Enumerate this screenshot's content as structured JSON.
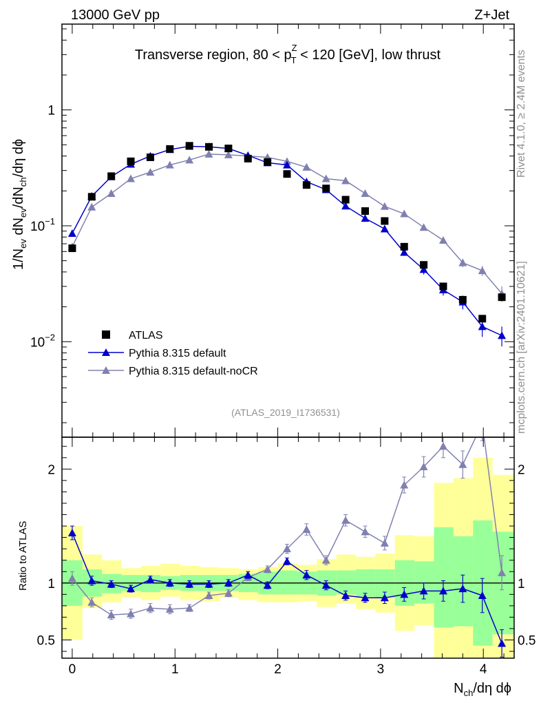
{
  "header": {
    "left": "13000 GeV pp",
    "right": "Z+Jet",
    "side_rivet": "Rivet 4.1.0, ≥ 2.4M events",
    "side_mcplots": "mcplots.cern.ch [arXiv:2401.10621]"
  },
  "colors": {
    "atlas": "#000000",
    "pythia_default": "#0000cc",
    "pythia_nocr": "#8080b0",
    "band_outer": "#ffff99",
    "band_inner": "#99ff99"
  },
  "chart_data": [
    {
      "type": "scatter",
      "panel": "main",
      "title_parts": [
        "Transverse region, 80 < p",
        "Z",
        "T",
        " < 120 [GeV], low thrust"
      ],
      "ylabel_parts": [
        "1/N",
        "ev",
        " dN",
        "ev",
        "/dN",
        "ch",
        "/dη dϕ"
      ],
      "yscale": "log",
      "ylim": [
        0.0015,
        5.5
      ],
      "xlim": [
        -0.1,
        4.3
      ],
      "ytick_labels": [
        {
          "value": 1,
          "base": "1",
          "exp": ""
        },
        {
          "value": 0.1,
          "base": "10",
          "exp": "−1"
        },
        {
          "value": 0.01,
          "base": "10",
          "exp": "−2"
        }
      ],
      "watermark": "(ATLAS_2019_I1736531)",
      "x": [
        0.0,
        0.19,
        0.38,
        0.57,
        0.76,
        0.95,
        1.14,
        1.33,
        1.52,
        1.71,
        1.9,
        2.09,
        2.28,
        2.47,
        2.66,
        2.85,
        3.04,
        3.23,
        3.42,
        3.61,
        3.8,
        3.99,
        4.18
      ],
      "series": [
        {
          "name": "ATLAS",
          "marker": "square",
          "values": [
            0.064,
            0.178,
            0.268,
            0.36,
            0.39,
            0.46,
            0.49,
            0.48,
            0.465,
            0.38,
            0.355,
            0.28,
            0.225,
            0.21,
            0.168,
            0.134,
            0.11,
            0.066,
            0.046,
            0.03,
            0.023,
            0.0158,
            0.0242
          ]
        },
        {
          "name": "Pythia 8.315 default",
          "marker": "triangle",
          "values": [
            0.086,
            0.18,
            0.265,
            0.34,
            0.4,
            0.455,
            0.485,
            0.48,
            0.465,
            0.405,
            0.35,
            0.335,
            0.24,
            0.205,
            0.148,
            0.116,
            0.094,
            0.059,
            0.042,
            0.028,
            0.022,
            0.0135,
            0.0113
          ],
          "errors": [
            0.004,
            0.006,
            0.008,
            0.01,
            0.012,
            0.013,
            0.014,
            0.014,
            0.013,
            0.012,
            0.011,
            0.01,
            0.009,
            0.008,
            0.006,
            0.005,
            0.005,
            0.004,
            0.004,
            0.003,
            0.003,
            0.0025,
            0.0022
          ]
        },
        {
          "name": "Pythia 8.315 default-noCR",
          "marker": "triangle",
          "values": [
            0.066,
            0.145,
            0.19,
            0.255,
            0.29,
            0.335,
            0.37,
            0.415,
            0.41,
            0.4,
            0.39,
            0.36,
            0.32,
            0.255,
            0.245,
            0.19,
            0.147,
            0.127,
            0.097,
            0.075,
            0.048,
            0.041,
            0.026
          ],
          "errors": [
            0.004,
            0.005,
            0.006,
            0.008,
            0.009,
            0.01,
            0.011,
            0.012,
            0.012,
            0.012,
            0.011,
            0.01,
            0.009,
            0.008,
            0.007,
            0.006,
            0.006,
            0.005,
            0.004,
            0.004,
            0.004,
            0.004,
            0.004
          ]
        }
      ]
    },
    {
      "type": "line",
      "panel": "ratio",
      "ylabel": "Ratio to ATLAS",
      "xlabel_parts": [
        "N",
        "ch",
        "/dη dϕ"
      ],
      "ylim": [
        0.34,
        2.28
      ],
      "xlim": [
        -0.1,
        4.3
      ],
      "yticks": [
        0.5,
        1,
        2
      ],
      "ytick_labels": [
        "0.5",
        "1",
        "2"
      ],
      "xticks": [
        0,
        1,
        2,
        3,
        4
      ],
      "xtick_labels": [
        "0",
        "1",
        "2",
        "3",
        "4"
      ],
      "band_edges": [
        -0.1,
        0.1,
        0.29,
        0.48,
        0.67,
        0.86,
        1.05,
        1.24,
        1.43,
        1.62,
        1.81,
        2.0,
        2.19,
        2.38,
        2.57,
        2.76,
        2.95,
        3.14,
        3.33,
        3.52,
        3.71,
        3.9,
        4.09,
        4.3
      ],
      "band_outer_low": [
        0.5,
        0.78,
        0.83,
        0.87,
        0.85,
        0.88,
        0.85,
        0.84,
        0.87,
        0.85,
        0.83,
        0.83,
        0.84,
        0.79,
        0.82,
        0.77,
        0.74,
        0.58,
        0.63,
        0.2,
        0.2,
        0.2,
        0.2
      ],
      "band_outer_high": [
        1.5,
        1.25,
        1.2,
        1.13,
        1.15,
        1.17,
        1.15,
        1.14,
        1.13,
        1.12,
        1.14,
        1.17,
        1.16,
        1.21,
        1.25,
        1.23,
        1.26,
        1.42,
        1.41,
        1.88,
        1.92,
        2.1,
        1.95
      ],
      "band_inner_low": [
        0.8,
        0.88,
        0.91,
        0.93,
        0.92,
        0.94,
        0.93,
        0.93,
        0.93,
        0.92,
        0.9,
        0.9,
        0.9,
        0.89,
        0.9,
        0.88,
        0.87,
        0.8,
        0.82,
        0.61,
        0.62,
        0.45,
        0.55
      ],
      "band_inner_high": [
        1.2,
        1.12,
        1.08,
        1.07,
        1.07,
        1.06,
        1.07,
        1.07,
        1.07,
        1.08,
        1.1,
        1.11,
        1.1,
        1.11,
        1.11,
        1.12,
        1.12,
        1.2,
        1.19,
        1.49,
        1.41,
        1.55,
        1.45
      ],
      "reference_line": 1,
      "series": [
        {
          "name": "Pythia 8.315 default",
          "values": [
            1.44,
            1.02,
            0.99,
            0.95,
            1.03,
            1.0,
            0.99,
            0.99,
            1.0,
            1.07,
            0.98,
            1.19,
            1.07,
            0.98,
            0.89,
            0.87,
            0.87,
            0.9,
            0.93,
            0.93,
            0.95,
            0.89,
            0.47
          ],
          "errors": [
            0.06,
            0.04,
            0.03,
            0.03,
            0.03,
            0.03,
            0.03,
            0.03,
            0.03,
            0.03,
            0.03,
            0.03,
            0.04,
            0.04,
            0.04,
            0.04,
            0.05,
            0.06,
            0.07,
            0.09,
            0.12,
            0.15,
            0.12
          ]
        },
        {
          "name": "Pythia 8.315 default-noCR",
          "values": [
            1.04,
            0.83,
            0.72,
            0.73,
            0.78,
            0.77,
            0.78,
            0.89,
            0.91,
            1.05,
            1.12,
            1.3,
            1.47,
            1.2,
            1.55,
            1.45,
            1.35,
            1.86,
            2.02,
            2.2,
            2.04,
            2.4,
            1.09
          ],
          "errors": [
            0.06,
            0.04,
            0.04,
            0.04,
            0.04,
            0.04,
            0.03,
            0.03,
            0.03,
            0.03,
            0.03,
            0.04,
            0.05,
            0.04,
            0.05,
            0.05,
            0.06,
            0.07,
            0.09,
            0.1,
            0.12,
            0.15,
            0.15
          ]
        }
      ]
    }
  ]
}
